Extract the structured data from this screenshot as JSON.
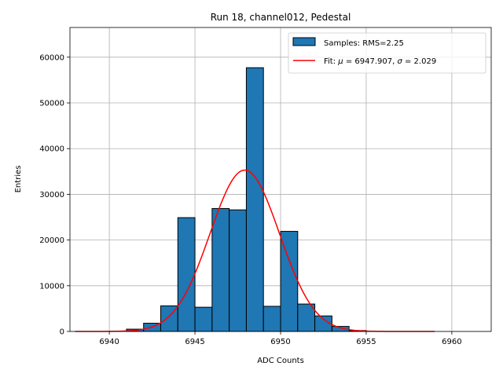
{
  "chart_data": {
    "type": "bar",
    "title": "Run 18, channel012, Pedestal",
    "xlabel": "ADC Counts",
    "ylabel": "Entries",
    "xlim": [
      6937.7,
      6962.3
    ],
    "ylim": [
      0,
      66500
    ],
    "xticks": [
      6940,
      6945,
      6950,
      6955,
      6960
    ],
    "yticks": [
      0,
      10000,
      20000,
      30000,
      40000,
      50000,
      60000
    ],
    "grid": true,
    "legend_position": "top-right",
    "histogram": {
      "name": "Samples: RMS=2.25",
      "bin_width": 1,
      "bin_edges_start": 6941,
      "values": [
        500,
        1800,
        5600,
        24900,
        5300,
        26900,
        26600,
        57700,
        5500,
        21900,
        6000,
        3400,
        1100,
        200
      ],
      "color": "#1f77b4"
    },
    "fit": {
      "name_prefix": "Fit: ",
      "name_mu": "μ",
      "name_mid": " = 6947.907, ",
      "name_sigma": "σ",
      "name_suffix": " = 2.029",
      "mu": 6947.907,
      "sigma": 2.029,
      "peak": 35300,
      "x_range": [
        6938,
        6959
      ],
      "color": "#ff0000"
    }
  }
}
